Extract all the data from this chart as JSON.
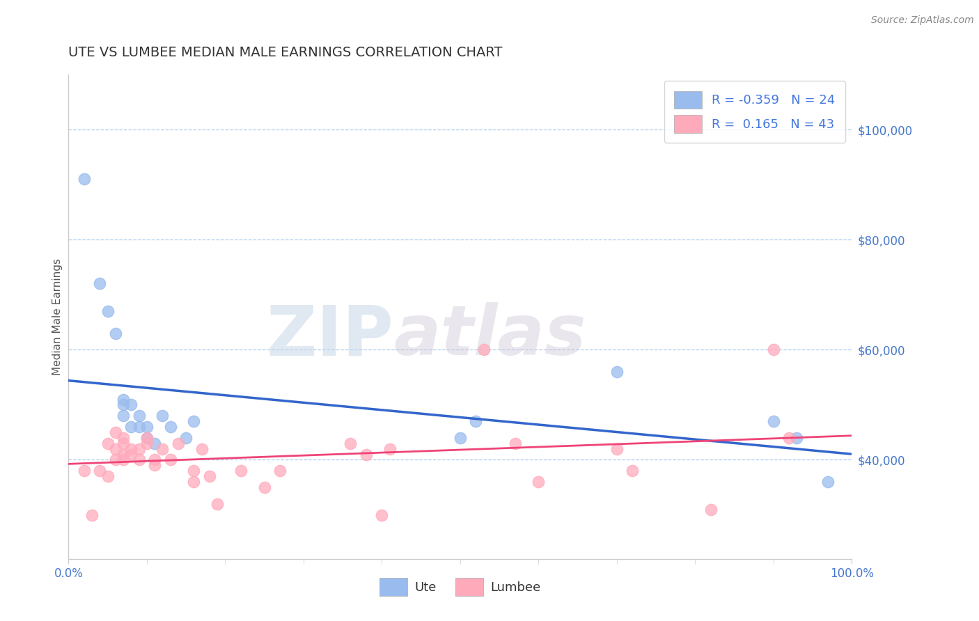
{
  "title": "UTE VS LUMBEE MEDIAN MALE EARNINGS CORRELATION CHART",
  "source": "Source: ZipAtlas.com",
  "ylabel": "Median Male Earnings",
  "background_color": "#ffffff",
  "watermark_text": "ZIP",
  "watermark_text2": "atlas",
  "ute_color": "#99bbee",
  "lumbee_color": "#ffaabb",
  "ute_R": -0.359,
  "ute_N": 24,
  "lumbee_R": 0.165,
  "lumbee_N": 43,
  "ute_line_color": "#3366cc",
  "lumbee_line_color": "#ee4477",
  "ytick_labels": [
    "$40,000",
    "$60,000",
    "$80,000",
    "$100,000"
  ],
  "ytick_values": [
    40000,
    60000,
    80000,
    100000
  ],
  "xlim": [
    0.0,
    1.0
  ],
  "ylim": [
    22000,
    110000
  ],
  "legend_text_color": "#4477dd",
  "legend_label_color": "#333333",
  "title_color": "#333333",
  "source_color": "#888888",
  "ylabel_color": "#555555",
  "xtick_color": "#4477cc",
  "ytick_color": "#4477cc",
  "grid_color": "#aaccee",
  "spine_color": "#cccccc",
  "ute_scatter_x": [
    0.02,
    0.04,
    0.05,
    0.06,
    0.07,
    0.07,
    0.07,
    0.08,
    0.08,
    0.09,
    0.09,
    0.1,
    0.1,
    0.11,
    0.12,
    0.13,
    0.15,
    0.16,
    0.5,
    0.52,
    0.7,
    0.9,
    0.93,
    0.97
  ],
  "ute_scatter_y": [
    91000,
    72000,
    67000,
    63000,
    51000,
    50000,
    48000,
    50000,
    46000,
    48000,
    46000,
    44000,
    46000,
    43000,
    48000,
    46000,
    44000,
    47000,
    44000,
    47000,
    56000,
    47000,
    44000,
    36000
  ],
  "lumbee_scatter_x": [
    0.02,
    0.03,
    0.04,
    0.05,
    0.05,
    0.06,
    0.06,
    0.06,
    0.07,
    0.07,
    0.07,
    0.07,
    0.08,
    0.08,
    0.09,
    0.09,
    0.1,
    0.1,
    0.11,
    0.11,
    0.12,
    0.13,
    0.14,
    0.16,
    0.16,
    0.17,
    0.18,
    0.19,
    0.22,
    0.25,
    0.27,
    0.36,
    0.38,
    0.4,
    0.41,
    0.53,
    0.57,
    0.6,
    0.7,
    0.72,
    0.82,
    0.9,
    0.92
  ],
  "lumbee_scatter_y": [
    38000,
    30000,
    38000,
    37000,
    43000,
    45000,
    42000,
    40000,
    44000,
    43000,
    41000,
    40000,
    42000,
    41000,
    42000,
    40000,
    44000,
    43000,
    40000,
    39000,
    42000,
    40000,
    43000,
    38000,
    36000,
    42000,
    37000,
    32000,
    38000,
    35000,
    38000,
    43000,
    41000,
    30000,
    42000,
    60000,
    43000,
    36000,
    42000,
    38000,
    31000,
    60000,
    44000
  ]
}
